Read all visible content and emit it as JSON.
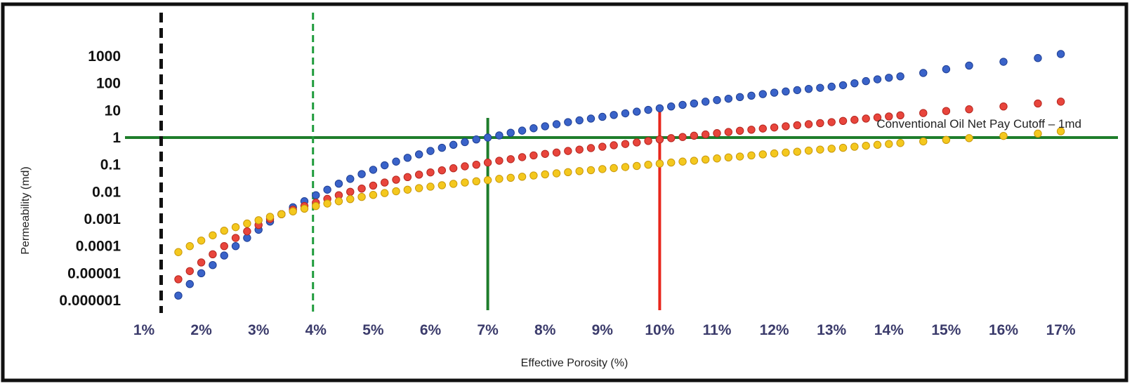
{
  "chart_data": {
    "type": "scatter",
    "title": "",
    "xlabel": "Effective Porosity (%)",
    "ylabel": "Permeability (md)",
    "x_scale": "linear",
    "y_scale": "log",
    "xlim": [
      1,
      17
    ],
    "ylim": [
      1e-06,
      1000
    ],
    "x_ticks": [
      "1%",
      "2%",
      "3%",
      "4%",
      "5%",
      "6%",
      "7%",
      "8%",
      "9%",
      "10%",
      "11%",
      "12%",
      "13%",
      "14%",
      "15%",
      "16%",
      "17%"
    ],
    "y_ticks": [
      "1000",
      "100",
      "10",
      "1",
      "0.1",
      "0.01",
      "0.001",
      "0.0001",
      "0.00001",
      "0.000001"
    ],
    "grid": false,
    "legend": "none",
    "series": [
      {
        "color": "#3a63c9",
        "x": [
          1.6,
          1.8,
          2.0,
          2.2,
          2.4,
          2.6,
          2.8,
          3.0,
          3.2,
          3.4,
          3.6,
          3.8,
          4.0,
          4.2,
          4.4,
          4.6,
          4.8,
          5.0,
          5.2,
          5.4,
          5.6,
          5.8,
          6.0,
          6.2,
          6.4,
          6.6,
          6.8,
          7.0,
          7.2,
          7.4,
          7.6,
          7.8,
          8.0,
          8.2,
          8.4,
          8.6,
          8.8,
          9.0,
          9.2,
          9.4,
          9.6,
          9.8,
          10.0,
          10.2,
          10.4,
          10.6,
          10.8,
          11.0,
          11.2,
          11.4,
          11.6,
          11.8,
          12.0,
          12.2,
          12.4,
          12.6,
          12.8,
          13.0,
          13.2,
          13.4,
          13.6,
          13.8,
          14.0,
          14.2,
          14.6,
          15.0,
          15.4,
          16.0,
          16.6,
          17.0
        ],
        "y": [
          1.5e-06,
          4e-06,
          1e-05,
          2e-05,
          4.5e-05,
          0.0001,
          0.0002,
          0.0004,
          0.0008,
          0.0015,
          0.0027,
          0.0045,
          0.0075,
          0.012,
          0.02,
          0.03,
          0.045,
          0.065,
          0.095,
          0.13,
          0.18,
          0.24,
          0.32,
          0.42,
          0.54,
          0.68,
          0.85,
          1.0,
          1.2,
          1.5,
          1.8,
          2.2,
          2.6,
          3.1,
          3.7,
          4.3,
          5.0,
          5.8,
          6.8,
          7.8,
          9.0,
          10.5,
          12,
          14,
          16,
          18,
          21,
          24,
          27,
          31,
          35,
          40,
          45,
          50,
          56,
          62,
          68,
          75,
          85,
          100,
          120,
          140,
          160,
          180,
          240,
          330,
          450,
          620,
          850,
          1200
        ]
      },
      {
        "color": "#e8453c",
        "x": [
          1.6,
          1.8,
          2.0,
          2.2,
          2.4,
          2.6,
          2.8,
          3.0,
          3.2,
          3.4,
          3.6,
          3.8,
          4.0,
          4.2,
          4.4,
          4.6,
          4.8,
          5.0,
          5.2,
          5.4,
          5.6,
          5.8,
          6.0,
          6.2,
          6.4,
          6.6,
          6.8,
          7.0,
          7.2,
          7.4,
          7.6,
          7.8,
          8.0,
          8.2,
          8.4,
          8.6,
          8.8,
          9.0,
          9.2,
          9.4,
          9.6,
          9.8,
          10.0,
          10.2,
          10.4,
          10.6,
          10.8,
          11.0,
          11.2,
          11.4,
          11.6,
          11.8,
          12.0,
          12.2,
          12.4,
          12.6,
          12.8,
          13.0,
          13.2,
          13.4,
          13.6,
          13.8,
          14.0,
          14.2,
          14.6,
          15.0,
          15.4,
          16.0,
          16.6,
          17.0
        ],
        "y": [
          6e-06,
          1.2e-05,
          2.5e-05,
          5e-05,
          0.0001,
          0.0002,
          0.00035,
          0.0006,
          0.001,
          0.0015,
          0.0022,
          0.003,
          0.004,
          0.0055,
          0.0075,
          0.01,
          0.0132,
          0.017,
          0.022,
          0.028,
          0.035,
          0.043,
          0.052,
          0.062,
          0.074,
          0.087,
          0.1,
          0.12,
          0.14,
          0.16,
          0.19,
          0.22,
          0.25,
          0.28,
          0.32,
          0.36,
          0.41,
          0.46,
          0.52,
          0.58,
          0.66,
          0.75,
          0.85,
          0.95,
          1.05,
          1.17,
          1.3,
          1.45,
          1.6,
          1.78,
          1.95,
          2.15,
          2.35,
          2.6,
          2.85,
          3.1,
          3.4,
          3.7,
          4.1,
          4.5,
          5.0,
          5.5,
          6.0,
          6.6,
          8.0,
          9.5,
          11,
          14,
          18,
          21
        ]
      },
      {
        "color": "#f4c81e",
        "x": [
          1.6,
          1.8,
          2.0,
          2.2,
          2.4,
          2.6,
          2.8,
          3.0,
          3.2,
          3.4,
          3.6,
          3.8,
          4.0,
          4.2,
          4.4,
          4.6,
          4.8,
          5.0,
          5.2,
          5.4,
          5.6,
          5.8,
          6.0,
          6.2,
          6.4,
          6.6,
          6.8,
          7.0,
          7.2,
          7.4,
          7.6,
          7.8,
          8.0,
          8.2,
          8.4,
          8.6,
          8.8,
          9.0,
          9.2,
          9.4,
          9.6,
          9.8,
          10.0,
          10.2,
          10.4,
          10.6,
          10.8,
          11.0,
          11.2,
          11.4,
          11.6,
          11.8,
          12.0,
          12.2,
          12.4,
          12.6,
          12.8,
          13.0,
          13.2,
          13.4,
          13.6,
          13.8,
          14.0,
          14.2,
          14.6,
          15.0,
          15.4,
          16.0,
          16.6,
          17.0
        ],
        "y": [
          6e-05,
          0.0001,
          0.00016,
          0.00025,
          0.00037,
          0.0005,
          0.00068,
          0.0009,
          0.0012,
          0.0015,
          0.0019,
          0.0024,
          0.003,
          0.0037,
          0.0045,
          0.0054,
          0.0065,
          0.0077,
          0.009,
          0.0105,
          0.012,
          0.0137,
          0.0155,
          0.0175,
          0.0197,
          0.022,
          0.0245,
          0.027,
          0.03,
          0.033,
          0.036,
          0.04,
          0.044,
          0.048,
          0.053,
          0.058,
          0.063,
          0.069,
          0.075,
          0.082,
          0.09,
          0.1,
          0.11,
          0.12,
          0.13,
          0.14,
          0.155,
          0.17,
          0.185,
          0.2,
          0.22,
          0.24,
          0.26,
          0.28,
          0.3,
          0.33,
          0.36,
          0.39,
          0.42,
          0.46,
          0.5,
          0.54,
          0.58,
          0.63,
          0.72,
          0.82,
          0.95,
          1.15,
          1.4,
          1.7
        ]
      }
    ],
    "reference_lines": [
      {
        "kind": "horizontal",
        "y": 1,
        "color": "#1e7d2b",
        "style": "solid"
      },
      {
        "kind": "vertical",
        "x": 1.3,
        "color": "#111111",
        "style": "dashed"
      },
      {
        "kind": "vertical",
        "x": 3.95,
        "color": "#1e9b3b",
        "style": "dashed"
      },
      {
        "kind": "vertical",
        "x": 7.0,
        "color": "#1e7d2b",
        "style": "solid"
      },
      {
        "kind": "vertical",
        "x": 10.0,
        "color": "#e8261c",
        "style": "solid"
      }
    ],
    "annotations": [
      {
        "text": "Conventional Oil Net Pay Cutoff – 1md",
        "x": 14.5,
        "y": 1
      }
    ]
  }
}
